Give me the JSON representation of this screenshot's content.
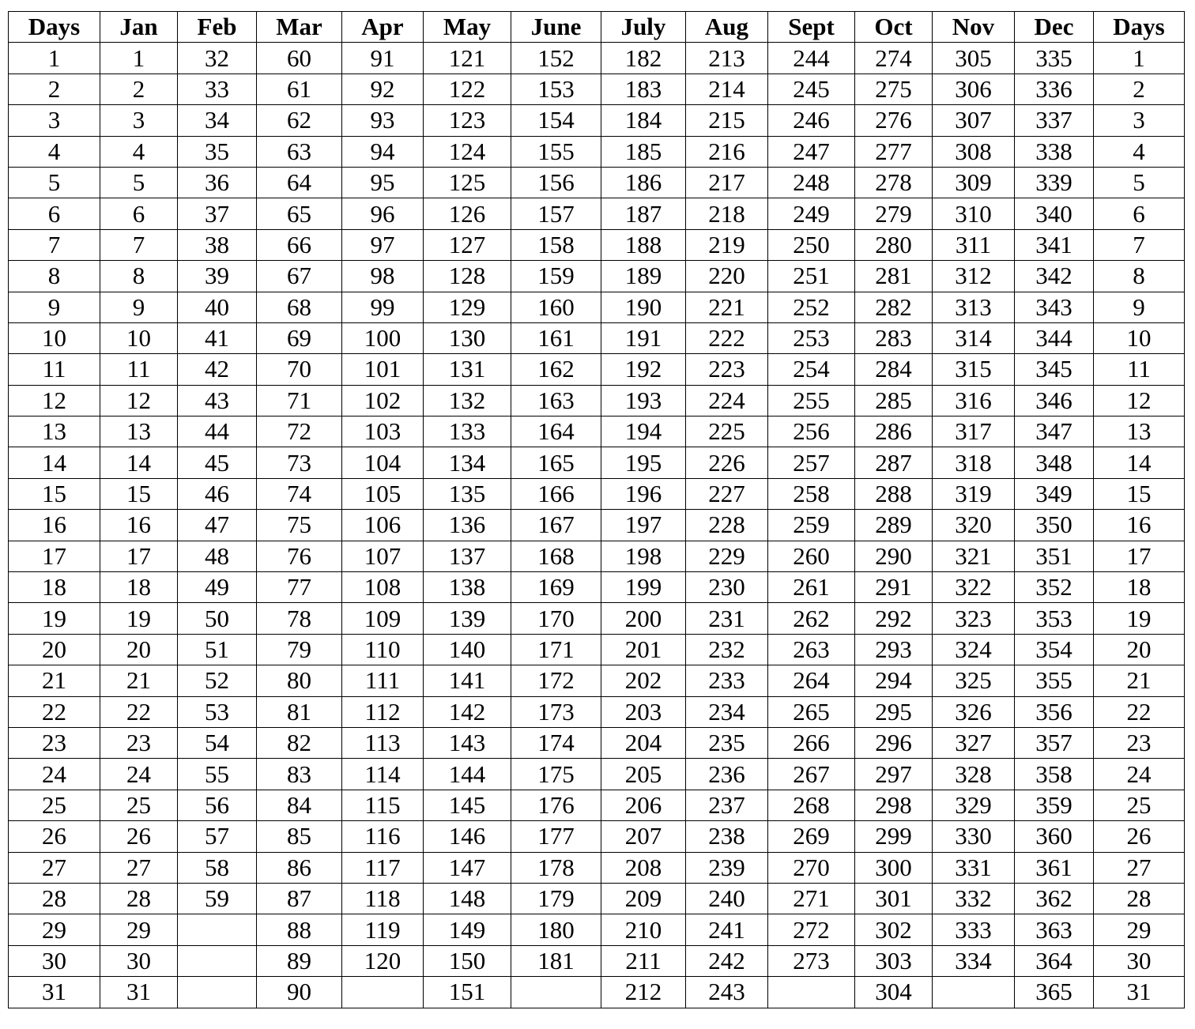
{
  "table": {
    "headers": [
      "Days",
      "Jan",
      "Feb",
      "Mar",
      "Apr",
      "May",
      "June",
      "July",
      "Aug",
      "Sept",
      "Oct",
      "Nov",
      "Dec",
      "Days"
    ],
    "rows": [
      [
        "1",
        "1",
        "32",
        "60",
        "91",
        "121",
        "152",
        "182",
        "213",
        "244",
        "274",
        "305",
        "335",
        "1"
      ],
      [
        "2",
        "2",
        "33",
        "61",
        "92",
        "122",
        "153",
        "183",
        "214",
        "245",
        "275",
        "306",
        "336",
        "2"
      ],
      [
        "3",
        "3",
        "34",
        "62",
        "93",
        "123",
        "154",
        "184",
        "215",
        "246",
        "276",
        "307",
        "337",
        "3"
      ],
      [
        "4",
        "4",
        "35",
        "63",
        "94",
        "124",
        "155",
        "185",
        "216",
        "247",
        "277",
        "308",
        "338",
        "4"
      ],
      [
        "5",
        "5",
        "36",
        "64",
        "95",
        "125",
        "156",
        "186",
        "217",
        "248",
        "278",
        "309",
        "339",
        "5"
      ],
      [
        "6",
        "6",
        "37",
        "65",
        "96",
        "126",
        "157",
        "187",
        "218",
        "249",
        "279",
        "310",
        "340",
        "6"
      ],
      [
        "7",
        "7",
        "38",
        "66",
        "97",
        "127",
        "158",
        "188",
        "219",
        "250",
        "280",
        "311",
        "341",
        "7"
      ],
      [
        "8",
        "8",
        "39",
        "67",
        "98",
        "128",
        "159",
        "189",
        "220",
        "251",
        "281",
        "312",
        "342",
        "8"
      ],
      [
        "9",
        "9",
        "40",
        "68",
        "99",
        "129",
        "160",
        "190",
        "221",
        "252",
        "282",
        "313",
        "343",
        "9"
      ],
      [
        "10",
        "10",
        "41",
        "69",
        "100",
        "130",
        "161",
        "191",
        "222",
        "253",
        "283",
        "314",
        "344",
        "10"
      ],
      [
        "11",
        "11",
        "42",
        "70",
        "101",
        "131",
        "162",
        "192",
        "223",
        "254",
        "284",
        "315",
        "345",
        "11"
      ],
      [
        "12",
        "12",
        "43",
        "71",
        "102",
        "132",
        "163",
        "193",
        "224",
        "255",
        "285",
        "316",
        "346",
        "12"
      ],
      [
        "13",
        "13",
        "44",
        "72",
        "103",
        "133",
        "164",
        "194",
        "225",
        "256",
        "286",
        "317",
        "347",
        "13"
      ],
      [
        "14",
        "14",
        "45",
        "73",
        "104",
        "134",
        "165",
        "195",
        "226",
        "257",
        "287",
        "318",
        "348",
        "14"
      ],
      [
        "15",
        "15",
        "46",
        "74",
        "105",
        "135",
        "166",
        "196",
        "227",
        "258",
        "288",
        "319",
        "349",
        "15"
      ],
      [
        "16",
        "16",
        "47",
        "75",
        "106",
        "136",
        "167",
        "197",
        "228",
        "259",
        "289",
        "320",
        "350",
        "16"
      ],
      [
        "17",
        "17",
        "48",
        "76",
        "107",
        "137",
        "168",
        "198",
        "229",
        "260",
        "290",
        "321",
        "351",
        "17"
      ],
      [
        "18",
        "18",
        "49",
        "77",
        "108",
        "138",
        "169",
        "199",
        "230",
        "261",
        "291",
        "322",
        "352",
        "18"
      ],
      [
        "19",
        "19",
        "50",
        "78",
        "109",
        "139",
        "170",
        "200",
        "231",
        "262",
        "292",
        "323",
        "353",
        "19"
      ],
      [
        "20",
        "20",
        "51",
        "79",
        "110",
        "140",
        "171",
        "201",
        "232",
        "263",
        "293",
        "324",
        "354",
        "20"
      ],
      [
        "21",
        "21",
        "52",
        "80",
        "111",
        "141",
        "172",
        "202",
        "233",
        "264",
        "294",
        "325",
        "355",
        "21"
      ],
      [
        "22",
        "22",
        "53",
        "81",
        "112",
        "142",
        "173",
        "203",
        "234",
        "265",
        "295",
        "326",
        "356",
        "22"
      ],
      [
        "23",
        "23",
        "54",
        "82",
        "113",
        "143",
        "174",
        "204",
        "235",
        "266",
        "296",
        "327",
        "357",
        "23"
      ],
      [
        "24",
        "24",
        "55",
        "83",
        "114",
        "144",
        "175",
        "205",
        "236",
        "267",
        "297",
        "328",
        "358",
        "24"
      ],
      [
        "25",
        "25",
        "56",
        "84",
        "115",
        "145",
        "176",
        "206",
        "237",
        "268",
        "298",
        "329",
        "359",
        "25"
      ],
      [
        "26",
        "26",
        "57",
        "85",
        "116",
        "146",
        "177",
        "207",
        "238",
        "269",
        "299",
        "330",
        "360",
        "26"
      ],
      [
        "27",
        "27",
        "58",
        "86",
        "117",
        "147",
        "178",
        "208",
        "239",
        "270",
        "300",
        "331",
        "361",
        "27"
      ],
      [
        "28",
        "28",
        "59",
        "87",
        "118",
        "148",
        "179",
        "209",
        "240",
        "271",
        "301",
        "332",
        "362",
        "28"
      ],
      [
        "29",
        "29",
        "",
        "88",
        "119",
        "149",
        "180",
        "210",
        "241",
        "272",
        "302",
        "333",
        "363",
        "29"
      ],
      [
        "30",
        "30",
        "",
        "89",
        "120",
        "150",
        "181",
        "211",
        "242",
        "273",
        "303",
        "334",
        "364",
        "30"
      ],
      [
        "31",
        "31",
        "",
        "90",
        "",
        "151",
        "",
        "212",
        "243",
        "",
        "304",
        "",
        "365",
        "31"
      ]
    ]
  }
}
